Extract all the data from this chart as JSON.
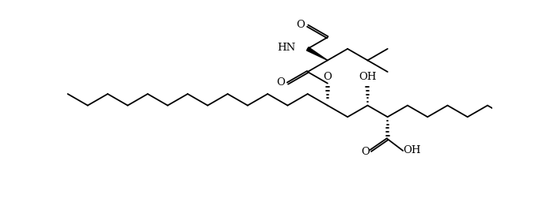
{
  "background": "#ffffff",
  "lc": "#000000",
  "lw": 1.3,
  "fs": 9.5,
  "figsize": [
    7.0,
    2.75
  ],
  "dpi": 100,
  "xlim": [
    0.0,
    14.0
  ],
  "ylim": [
    -1.6,
    5.4
  ]
}
